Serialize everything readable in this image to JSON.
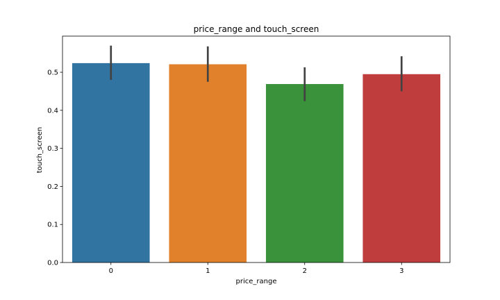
{
  "chart_data": {
    "type": "bar",
    "title": "price_range and touch_screen",
    "xlabel": "price_range",
    "ylabel": "touch_screen",
    "categories": [
      "0",
      "1",
      "2",
      "3"
    ],
    "values": [
      0.524,
      0.521,
      0.469,
      0.495
    ],
    "error_bars": [
      [
        0.48,
        0.57
      ],
      [
        0.475,
        0.568
      ],
      [
        0.424,
        0.513
      ],
      [
        0.45,
        0.542
      ]
    ],
    "colors": [
      "#3274a1",
      "#e1812c",
      "#3a923a",
      "#c03d3e"
    ],
    "ylim": [
      0,
      0.595
    ],
    "yticks": [
      0.0,
      0.1,
      0.2,
      0.3,
      0.4,
      0.5
    ],
    "ytick_labels": [
      "0.0",
      "0.1",
      "0.2",
      "0.3",
      "0.4",
      "0.5"
    ],
    "grid": false,
    "legend": "none"
  }
}
